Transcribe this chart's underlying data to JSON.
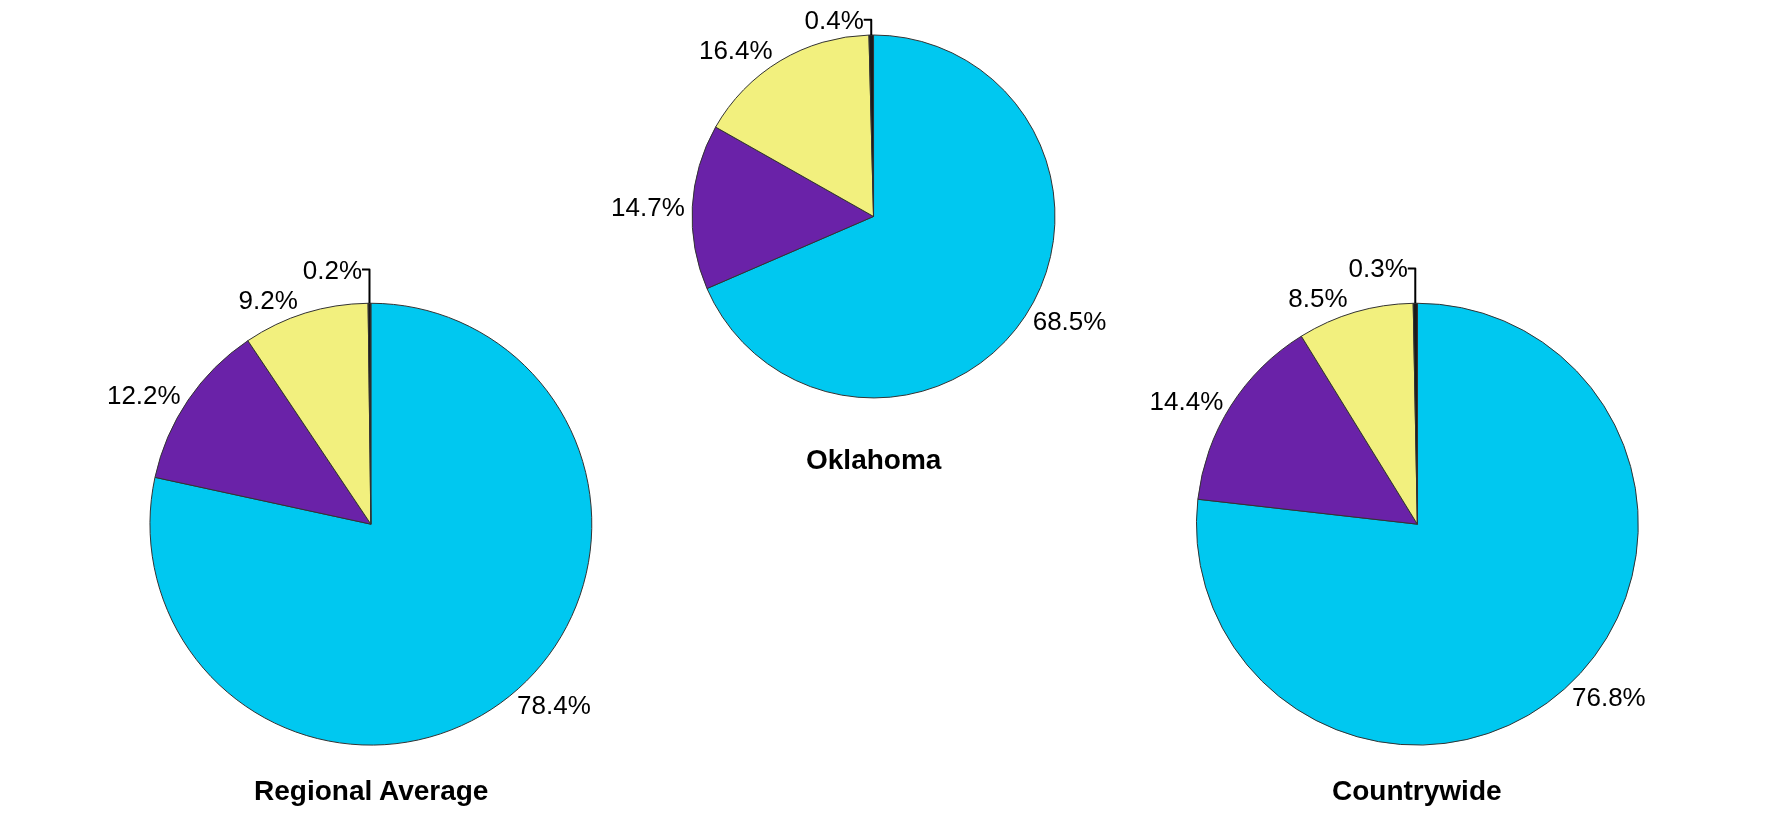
{
  "chart_data": [
    {
      "type": "pie",
      "title": "Regional Average",
      "categories": [
        null,
        null,
        null,
        null
      ],
      "values": [
        78.4,
        12.2,
        9.2,
        0.2
      ],
      "value_labels": [
        "78.4%",
        "12.2%",
        "9.2%",
        "0.2%"
      ],
      "colors": [
        "#00c8f0",
        "#6a22a8",
        "#f2f07e",
        "#1a1a1a"
      ]
    },
    {
      "type": "pie",
      "title": "Oklahoma",
      "categories": [
        null,
        null,
        null,
        null
      ],
      "values": [
        68.5,
        14.7,
        16.4,
        0.4
      ],
      "value_labels": [
        "68.5%",
        "14.7%",
        "16.4%",
        "0.4%"
      ],
      "colors": [
        "#00c8f0",
        "#6a22a8",
        "#f2f07e",
        "#1a1a1a"
      ]
    },
    {
      "type": "pie",
      "title": "Countrywide",
      "categories": [
        null,
        null,
        null,
        null
      ],
      "values": [
        76.8,
        14.4,
        8.5,
        0.3
      ],
      "value_labels": [
        "76.8%",
        "14.4%",
        "8.5%",
        "0.3%"
      ],
      "colors": [
        "#00c8f0",
        "#6a22a8",
        "#f2f07e",
        "#1a1a1a"
      ]
    }
  ]
}
